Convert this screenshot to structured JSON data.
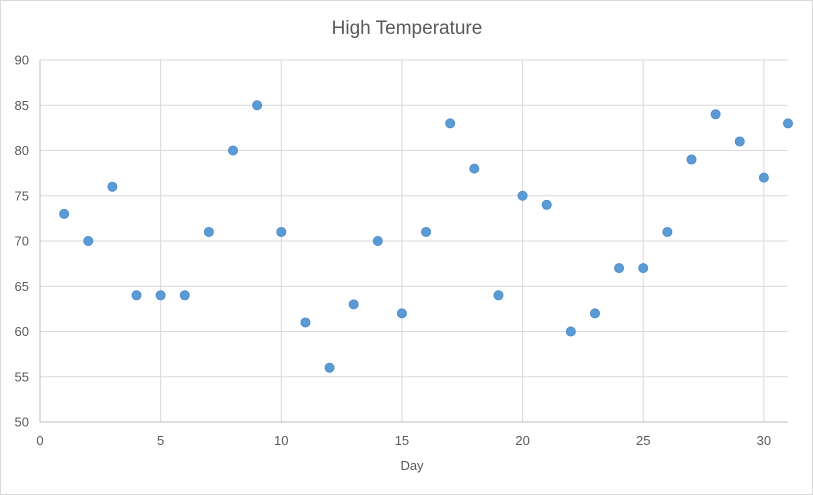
{
  "chart_data": {
    "type": "scatter",
    "title": "High Temperature",
    "xlabel": "Day",
    "ylabel": "",
    "xlim": [
      0,
      31
    ],
    "ylim": [
      50,
      90
    ],
    "x_ticks": [
      0,
      5,
      10,
      15,
      20,
      25,
      30
    ],
    "y_ticks": [
      50,
      55,
      60,
      65,
      70,
      75,
      80,
      85,
      90
    ],
    "grid": true,
    "legend": "none",
    "marker_color": "#5b9bd5",
    "series": [
      {
        "x": [
          1,
          2,
          3,
          4,
          5,
          6,
          7,
          8,
          9,
          10,
          11,
          12,
          13,
          14,
          15,
          16,
          17,
          18,
          19,
          20,
          21,
          22,
          23,
          24,
          25,
          26,
          27,
          28,
          29,
          30,
          31
        ],
        "y": [
          73,
          70,
          76,
          64,
          64,
          64,
          71,
          80,
          85,
          71,
          61,
          56,
          63,
          70,
          62,
          71,
          83,
          78,
          64,
          75,
          74,
          60,
          62,
          67,
          67,
          71,
          79,
          84,
          81,
          77,
          83
        ]
      }
    ]
  }
}
